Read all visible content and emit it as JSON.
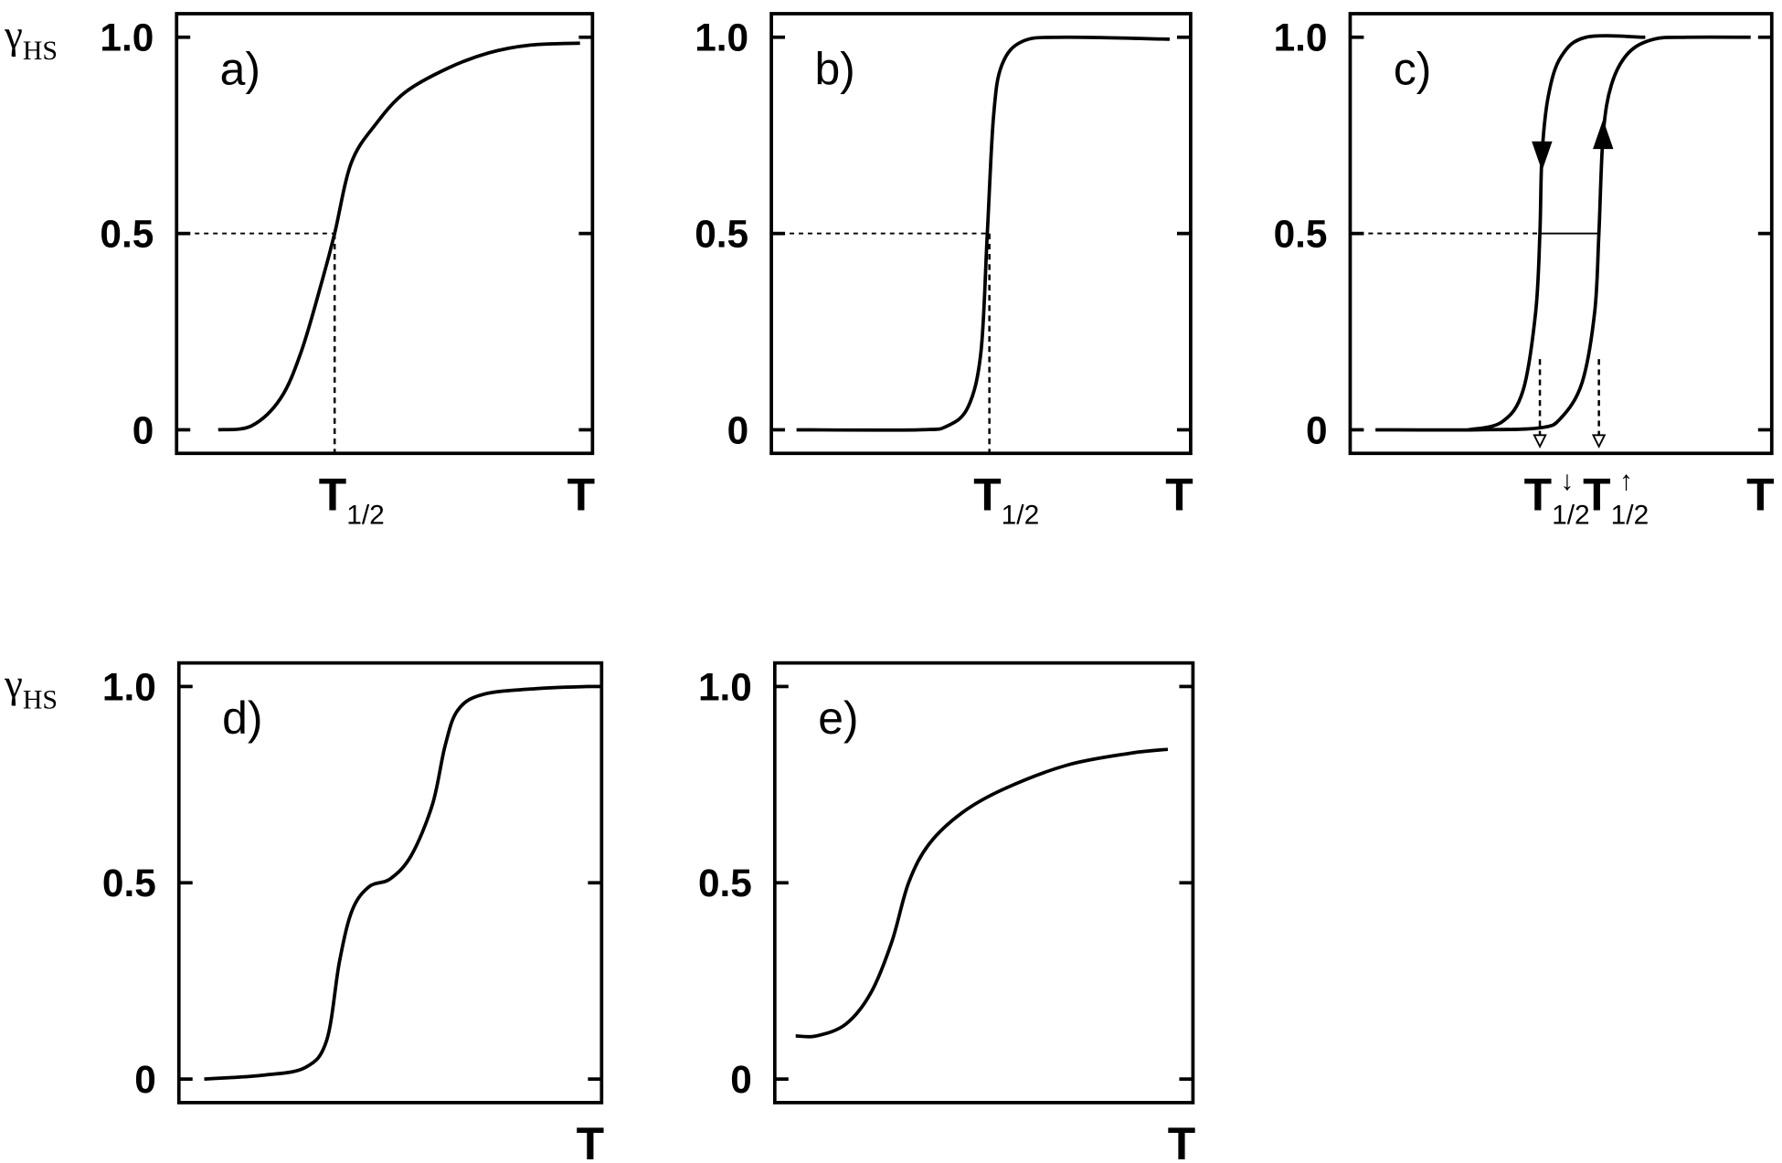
{
  "chart_data": [
    {
      "type": "line",
      "panel_label": "a)",
      "ylabel": "γ",
      "ylabel_sub": "HS",
      "xlabel": "T",
      "yticks": [
        "0",
        "0.5",
        "1.0"
      ],
      "ytick_values": [
        0,
        0.5,
        1.0
      ],
      "ylim": [
        -0.06,
        1.06
      ],
      "xlim": [
        0,
        1
      ],
      "x_markers": [
        {
          "label": "T",
          "sub": "1/2",
          "x": 0.38
        }
      ],
      "guide_y": 0.5,
      "series": [
        {
          "x": [
            0.1,
            0.18,
            0.25,
            0.3,
            0.35,
            0.38,
            0.42,
            0.48,
            0.55,
            0.65,
            0.75,
            0.85,
            0.97
          ],
          "y": [
            0.0,
            0.01,
            0.08,
            0.2,
            0.38,
            0.5,
            0.68,
            0.78,
            0.86,
            0.92,
            0.96,
            0.98,
            0.985
          ]
        }
      ]
    },
    {
      "type": "line",
      "panel_label": "b)",
      "xlabel": "T",
      "yticks": [
        "0",
        "0.5",
        "1.0"
      ],
      "ytick_values": [
        0,
        0.5,
        1.0
      ],
      "ylim": [
        -0.06,
        1.06
      ],
      "xlim": [
        0,
        1
      ],
      "x_markers": [
        {
          "label": "T",
          "sub": "1/2",
          "x": 0.52
        }
      ],
      "guide_y": 0.5,
      "series": [
        {
          "x": [
            0.06,
            0.35,
            0.42,
            0.47,
            0.5,
            0.515,
            0.53,
            0.55,
            0.6,
            0.7,
            0.95
          ],
          "y": [
            0.0,
            0.0,
            0.01,
            0.06,
            0.2,
            0.5,
            0.8,
            0.93,
            0.99,
            1.0,
            0.995
          ]
        }
      ]
    },
    {
      "type": "line",
      "panel_label": "c)",
      "xlabel": "T",
      "yticks": [
        "0",
        "0.5",
        "1.0"
      ],
      "ytick_values": [
        0,
        0.5,
        1.0
      ],
      "ylim": [
        -0.06,
        1.06
      ],
      "xlim": [
        0,
        1
      ],
      "x_markers": [
        {
          "label": "T",
          "sub": "1/2",
          "sup": "↓",
          "x": 0.45
        },
        {
          "label": "T",
          "sub": "1/2",
          "sup": "↑",
          "x": 0.59
        }
      ],
      "guide_y": 0.5,
      "series": [
        {
          "direction": "heating",
          "x": [
            0.06,
            0.3,
            0.45,
            0.5,
            0.55,
            0.58,
            0.59,
            0.6,
            0.62,
            0.66,
            0.72,
            0.8,
            0.95
          ],
          "y": [
            0.0,
            0.0,
            0.005,
            0.03,
            0.12,
            0.3,
            0.5,
            0.75,
            0.88,
            0.96,
            0.995,
            1.0,
            1.0
          ],
          "arrow_y": 0.75
        },
        {
          "direction": "cooling",
          "x": [
            0.28,
            0.36,
            0.41,
            0.44,
            0.45,
            0.455,
            0.47,
            0.5,
            0.56,
            0.7
          ],
          "y": [
            0.0,
            0.02,
            0.1,
            0.3,
            0.5,
            0.7,
            0.85,
            0.95,
            1.0,
            1.0
          ],
          "arrow_y": 0.7
        }
      ]
    },
    {
      "type": "line",
      "panel_label": "d)",
      "ylabel": "γ",
      "ylabel_sub": "HS",
      "xlabel": "T",
      "yticks": [
        "0",
        "0.5",
        "1.0"
      ],
      "ytick_values": [
        0,
        0.5,
        1.0
      ],
      "ylim": [
        -0.06,
        1.06
      ],
      "xlim": [
        0,
        1
      ],
      "series": [
        {
          "x": [
            0.06,
            0.2,
            0.3,
            0.35,
            0.38,
            0.41,
            0.45,
            0.5,
            0.55,
            0.6,
            0.63,
            0.66,
            0.72,
            0.85,
            0.97
          ],
          "y": [
            0.0,
            0.01,
            0.03,
            0.1,
            0.3,
            0.43,
            0.49,
            0.51,
            0.57,
            0.7,
            0.85,
            0.94,
            0.98,
            0.995,
            1.0
          ]
        }
      ]
    },
    {
      "type": "line",
      "panel_label": "e)",
      "xlabel": "T",
      "yticks": [
        "0",
        "0.5",
        "1.0"
      ],
      "ytick_values": [
        0,
        0.5,
        1.0
      ],
      "ylim": [
        -0.06,
        1.06
      ],
      "xlim": [
        0,
        1
      ],
      "series": [
        {
          "x": [
            0.05,
            0.1,
            0.17,
            0.23,
            0.28,
            0.32,
            0.37,
            0.45,
            0.55,
            0.7,
            0.85,
            0.94
          ],
          "y": [
            0.11,
            0.11,
            0.14,
            0.22,
            0.35,
            0.5,
            0.6,
            0.68,
            0.74,
            0.8,
            0.83,
            0.84
          ]
        }
      ]
    }
  ]
}
